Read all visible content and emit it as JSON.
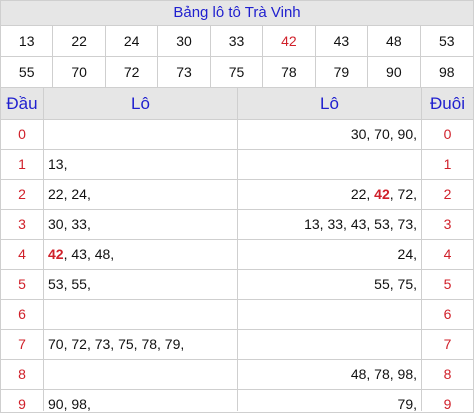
{
  "title": "Bảng lô tô Trà Vinh",
  "numbers_row1": [
    "13",
    "22",
    "24",
    "30",
    "33",
    "42",
    "43",
    "48",
    "53"
  ],
  "numbers_row2": [
    "55",
    "70",
    "72",
    "73",
    "75",
    "78",
    "79",
    "90",
    "98"
  ],
  "highlight_number": "42",
  "colors": {
    "accent_red": "#d0202a",
    "header_blue": "#1f1fcf",
    "header_bg": "#e6e6e6"
  },
  "table": {
    "headers": {
      "dau": "Đầu",
      "lo_left": "Lô",
      "lo_right": "Lô",
      "duoi": "Đuôi"
    },
    "rows": [
      {
        "dau": "0",
        "lo_left": [],
        "lo_right": [
          "30",
          "70",
          "90"
        ],
        "duoi": "0"
      },
      {
        "dau": "1",
        "lo_left": [
          "13"
        ],
        "lo_right": [],
        "duoi": "1"
      },
      {
        "dau": "2",
        "lo_left": [
          "22",
          "24"
        ],
        "lo_right": [
          "22",
          "42",
          "72"
        ],
        "duoi": "2"
      },
      {
        "dau": "3",
        "lo_left": [
          "30",
          "33"
        ],
        "lo_right": [
          "13",
          "33",
          "43",
          "53",
          "73"
        ],
        "duoi": "3"
      },
      {
        "dau": "4",
        "lo_left": [
          "42",
          "43",
          "48"
        ],
        "lo_right": [
          "24"
        ],
        "duoi": "4"
      },
      {
        "dau": "5",
        "lo_left": [
          "53",
          "55"
        ],
        "lo_right": [
          "55",
          "75"
        ],
        "duoi": "5"
      },
      {
        "dau": "6",
        "lo_left": [],
        "lo_right": [],
        "duoi": "6"
      },
      {
        "dau": "7",
        "lo_left": [
          "70",
          "72",
          "73",
          "75",
          "78",
          "79"
        ],
        "lo_right": [],
        "duoi": "7"
      },
      {
        "dau": "8",
        "lo_left": [],
        "lo_right": [
          "48",
          "78",
          "98"
        ],
        "duoi": "8"
      },
      {
        "dau": "9",
        "lo_left": [
          "90",
          "98"
        ],
        "lo_right": [
          "79"
        ],
        "duoi": "9"
      }
    ]
  }
}
